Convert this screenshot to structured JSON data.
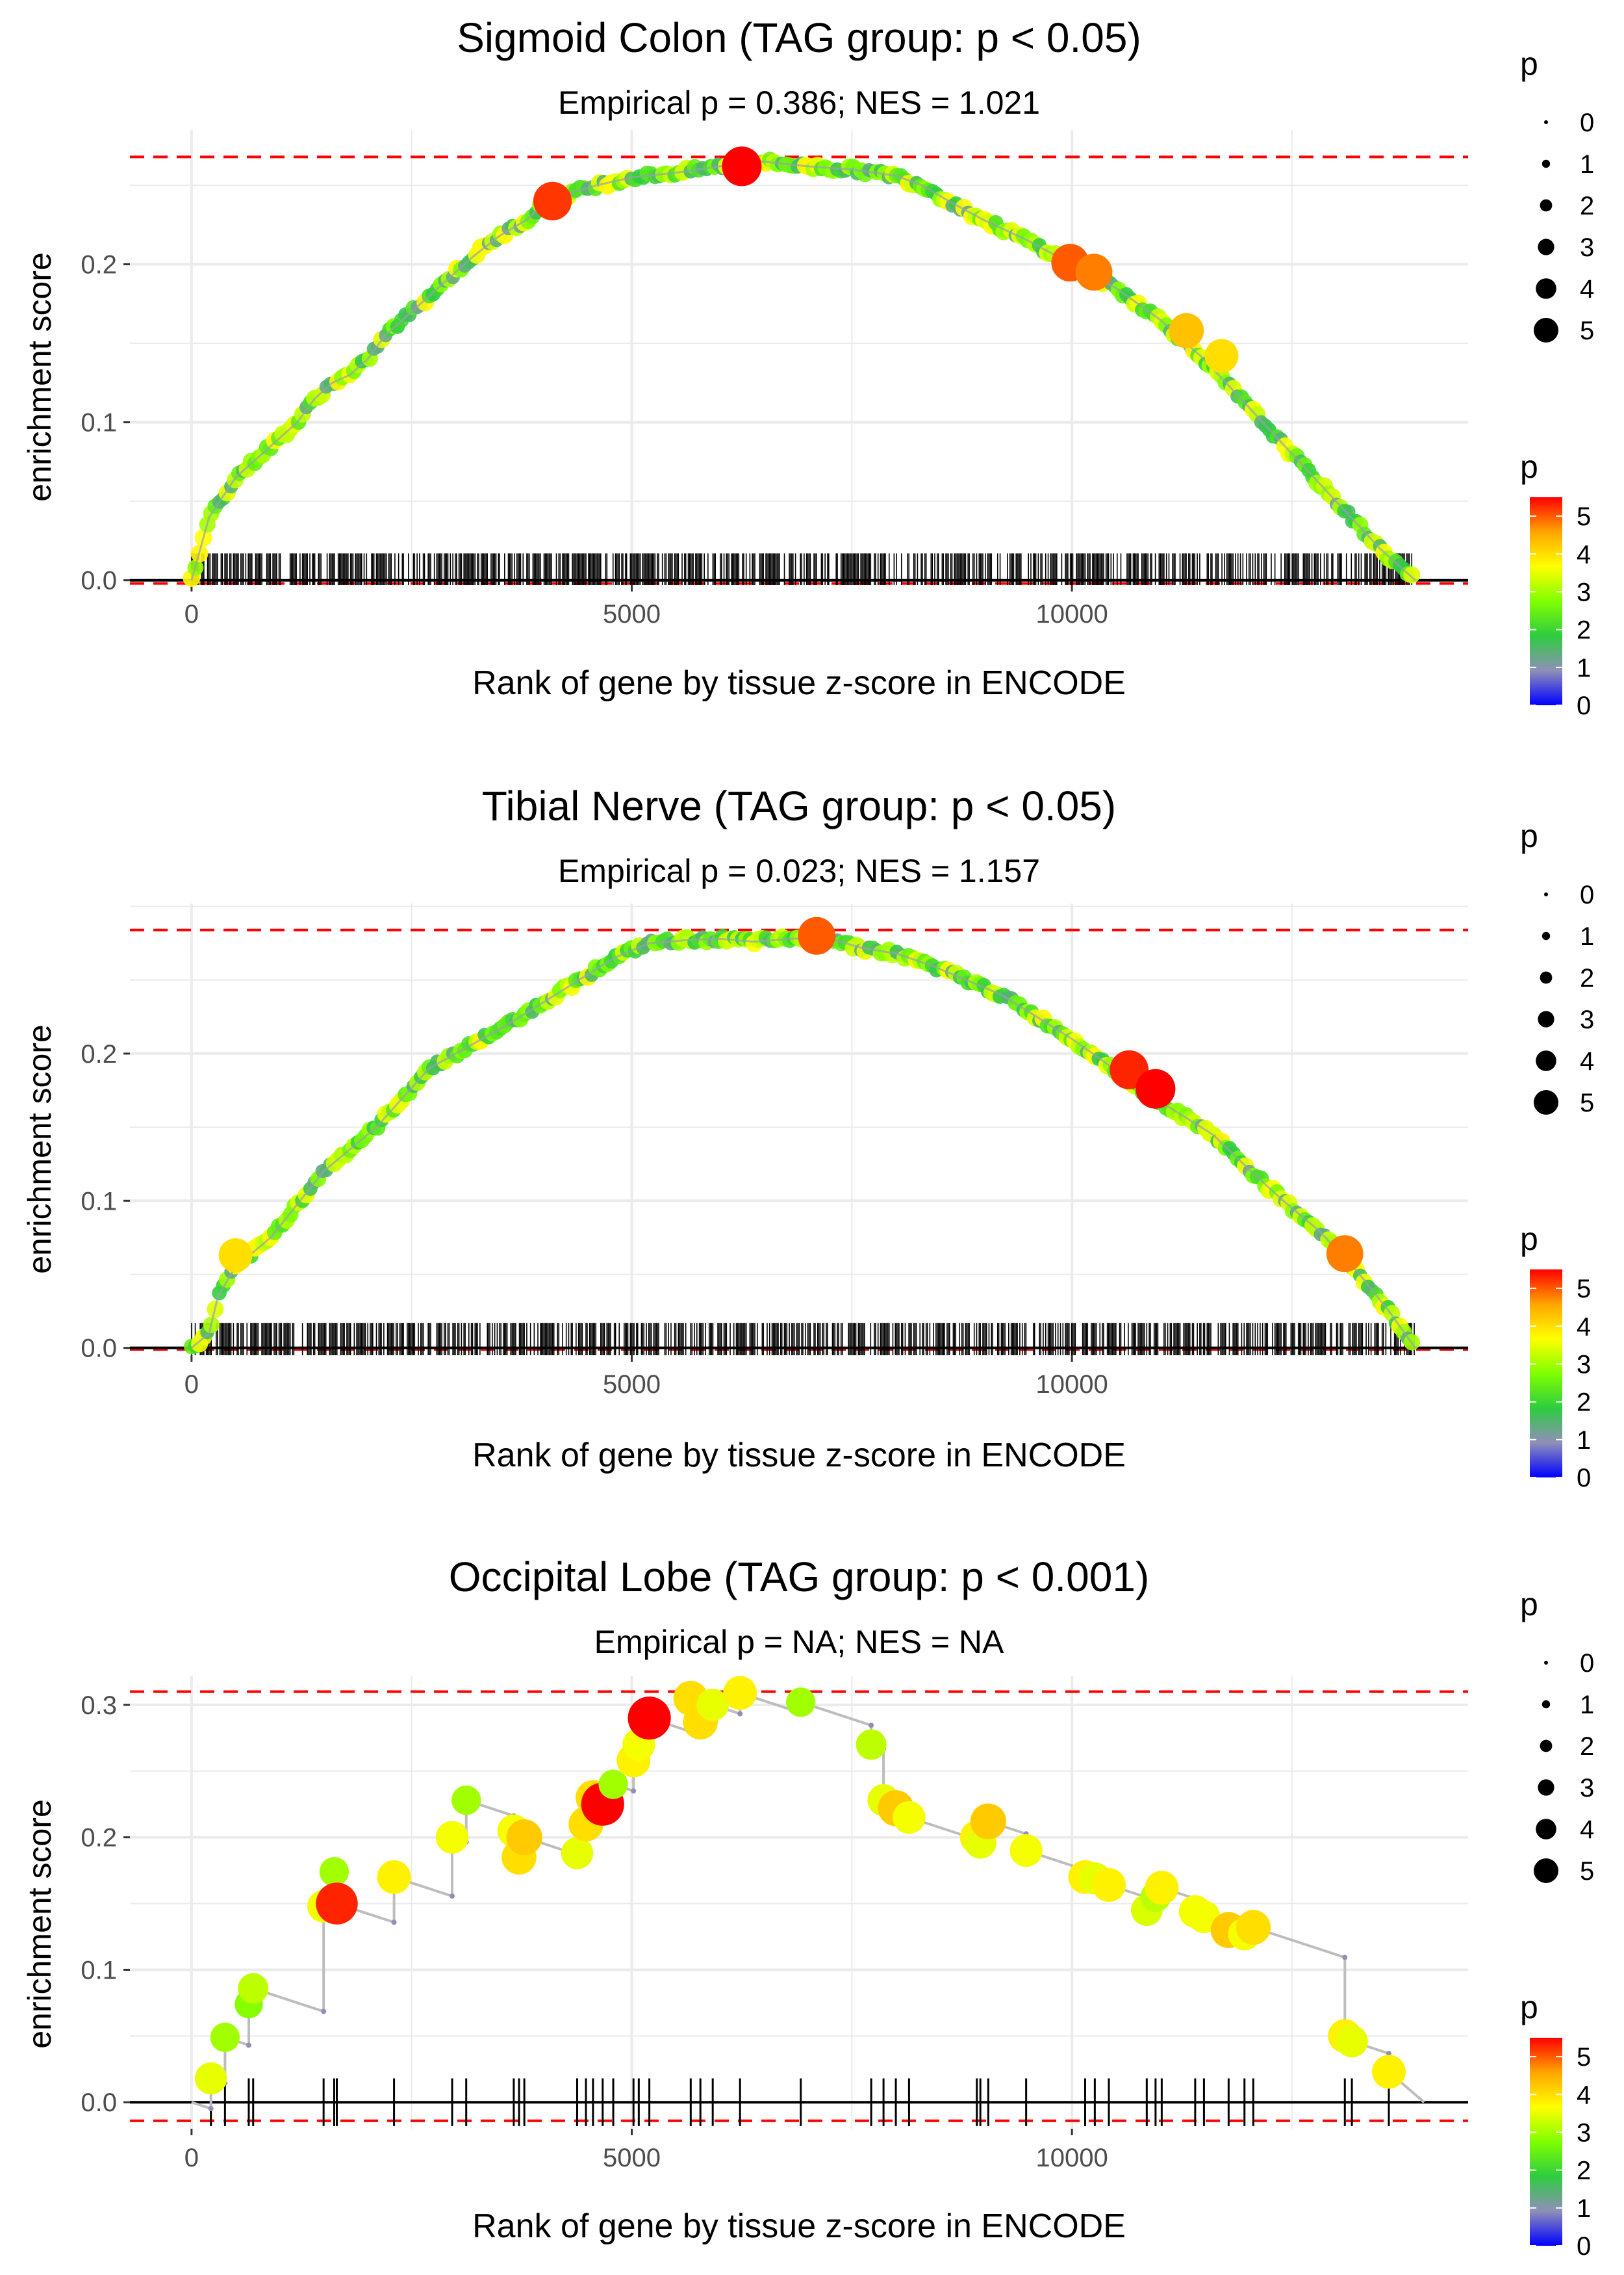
{
  "colors": {
    "background": "#ffffff",
    "grid": "#ebebeb",
    "threshold_line": "#ff0000",
    "zero_line": "#000000",
    "path_line": "#bdbdbd",
    "rug": "#000000",
    "axis_text": "#4d4d4d",
    "title_text": "#000000",
    "colorbar_stops": [
      "#0000ff",
      "#8f8fb8",
      "#2ecc40",
      "#7fff00",
      "#ffff00",
      "#ffa500",
      "#ff0000"
    ]
  },
  "chart_data": [
    {
      "type": "line",
      "title": "Sigmoid Colon (TAG group: p < 0.05)",
      "subtitle": "Empirical p = 0.386; NES = 1.021",
      "xlabel": "Rank of gene by tissue z-score in ENCODE",
      "ylabel": "enrichment score",
      "xlim": [
        -700,
        14500
      ],
      "ylim": [
        -0.003,
        0.285
      ],
      "xticks": [
        0,
        5000,
        10000
      ],
      "xtick_labels": [
        "0",
        "5000",
        "10000"
      ],
      "yticks": [
        0.0,
        0.1,
        0.2
      ],
      "ytick_labels": [
        "0.0",
        "0.1",
        "0.2"
      ],
      "thresholds": [
        0.268,
        -0.002
      ],
      "legend_size": {
        "title": "p",
        "labels": [
          "0",
          "1",
          "2",
          "3",
          "4",
          "5"
        ]
      },
      "legend_color": {
        "title": "p",
        "labels": [
          "0",
          "1",
          "2",
          "3",
          "4",
          "5"
        ],
        "range": [
          0,
          5.5
        ]
      },
      "dense": true,
      "curve": {
        "x": [
          0,
          200,
          500,
          800,
          1000,
          1200,
          1400,
          1600,
          1800,
          2000,
          2200,
          2500,
          2800,
          3000,
          3200,
          3500,
          3800,
          4000,
          4300,
          4600,
          5000,
          5500,
          6000,
          6500,
          7000,
          7500,
          8000,
          8300,
          8600,
          9000,
          9500,
          10000,
          10500,
          11000,
          11500,
          12000,
          12500,
          13000,
          13500,
          13900
        ],
        "y": [
          0.0,
          0.04,
          0.065,
          0.08,
          0.09,
          0.1,
          0.115,
          0.125,
          0.13,
          0.14,
          0.155,
          0.17,
          0.185,
          0.195,
          0.205,
          0.218,
          0.228,
          0.238,
          0.245,
          0.25,
          0.255,
          0.258,
          0.262,
          0.265,
          0.262,
          0.26,
          0.256,
          0.25,
          0.24,
          0.228,
          0.215,
          0.2,
          0.185,
          0.165,
          0.14,
          0.11,
          0.08,
          0.05,
          0.02,
          0.0
        ]
      },
      "highlight_points": [
        {
          "x": 4100,
          "y": 0.24,
          "p": 5.2
        },
        {
          "x": 6250,
          "y": 0.262,
          "p": 5.5
        },
        {
          "x": 9980,
          "y": 0.201,
          "p": 5.0
        },
        {
          "x": 10250,
          "y": 0.195,
          "p": 4.8
        },
        {
          "x": 11300,
          "y": 0.158,
          "p": 4.3
        },
        {
          "x": 11700,
          "y": 0.142,
          "p": 4.0
        }
      ]
    },
    {
      "type": "line",
      "title": "Tibial Nerve (TAG group: p < 0.05)",
      "subtitle": "Empirical p = 0.023; NES = 1.157",
      "xlabel": "Rank of gene by tissue z-score in ENCODE",
      "ylabel": "enrichment score",
      "xlim": [
        -700,
        14500
      ],
      "ylim": [
        -0.005,
        0.302
      ],
      "xticks": [
        0,
        5000,
        10000
      ],
      "xtick_labels": [
        "0",
        "5000",
        "10000"
      ],
      "yticks": [
        0.0,
        0.1,
        0.2
      ],
      "ytick_labels": [
        "0.0",
        "0.1",
        "0.2"
      ],
      "thresholds": [
        0.284,
        -0.001
      ],
      "legend_size": {
        "title": "p",
        "labels": [
          "0",
          "1",
          "2",
          "3",
          "4",
          "5"
        ]
      },
      "legend_color": {
        "title": "p",
        "labels": [
          "0",
          "1",
          "2",
          "3",
          "4",
          "5"
        ],
        "range": [
          0,
          5.5
        ]
      },
      "dense": true,
      "curve": {
        "x": [
          0,
          200,
          300,
          500,
          700,
          900,
          1100,
          1300,
          1500,
          1700,
          1900,
          2100,
          2400,
          2700,
          3000,
          3300,
          3600,
          4000,
          4400,
          4800,
          5200,
          5600,
          6000,
          6400,
          6800,
          7200,
          7600,
          8000,
          8400,
          8800,
          9200,
          9600,
          10000,
          10400,
          10800,
          11200,
          11600,
          12000,
          12400,
          12800,
          13200,
          13600,
          13900
        ],
        "y": [
          0.0,
          0.01,
          0.035,
          0.055,
          0.065,
          0.075,
          0.09,
          0.105,
          0.12,
          0.13,
          0.14,
          0.15,
          0.17,
          0.19,
          0.2,
          0.21,
          0.22,
          0.235,
          0.25,
          0.265,
          0.275,
          0.277,
          0.278,
          0.276,
          0.278,
          0.279,
          0.272,
          0.268,
          0.26,
          0.25,
          0.24,
          0.225,
          0.21,
          0.193,
          0.175,
          0.16,
          0.145,
          0.122,
          0.1,
          0.08,
          0.055,
          0.025,
          0.0
        ]
      },
      "highlight_points": [
        {
          "x": 7100,
          "y": 0.28,
          "p": 5.0
        },
        {
          "x": 10650,
          "y": 0.189,
          "p": 5.3
        },
        {
          "x": 10950,
          "y": 0.176,
          "p": 5.5
        },
        {
          "x": 13100,
          "y": 0.064,
          "p": 4.8
        },
        {
          "x": 500,
          "y": 0.063,
          "p": 4.0
        }
      ]
    },
    {
      "type": "line",
      "title": "Occipital Lobe (TAG group: p < 0.001)",
      "subtitle": "Empirical p = NA; NES = NA",
      "xlabel": "Rank of gene by tissue z-score in ENCODE",
      "ylabel": "enrichment score",
      "xlim": [
        -700,
        14500
      ],
      "ylim": [
        -0.02,
        0.322
      ],
      "xticks": [
        0,
        5000,
        10000
      ],
      "xtick_labels": [
        "0",
        "5000",
        "10000"
      ],
      "yticks": [
        0.0,
        0.1,
        0.2,
        0.3
      ],
      "ytick_labels": [
        "0.0",
        "0.1",
        "0.2",
        "0.3"
      ],
      "thresholds": [
        0.31,
        -0.014
      ],
      "legend_size": {
        "title": "p",
        "labels": [
          "0",
          "1",
          "2",
          "3",
          "4",
          "5"
        ]
      },
      "legend_color": {
        "title": "p",
        "labels": [
          "0",
          "1",
          "2",
          "3",
          "4",
          "5"
        ],
        "range": [
          0,
          5.5
        ]
      },
      "dense": false,
      "hits": {
        "x": [
          220,
          380,
          650,
          700,
          1500,
          1620,
          1650,
          2300,
          2960,
          3120,
          3660,
          3720,
          3780,
          4380,
          4480,
          4560,
          4670,
          4790,
          5020,
          5080,
          5200,
          5670,
          5780,
          5920,
          6230,
          6920,
          7720,
          7860,
          8000,
          8150,
          8920,
          8960,
          9050,
          9480,
          10150,
          10260,
          10420,
          10850,
          10950,
          11020,
          11400,
          11500,
          11780,
          11960,
          12060,
          13100,
          13180,
          13600
        ],
        "y": [
          0.018,
          0.049,
          0.074,
          0.086,
          0.148,
          0.174,
          0.15,
          0.17,
          0.2,
          0.228,
          0.205,
          0.185,
          0.2,
          0.188,
          0.21,
          0.23,
          0.225,
          0.24,
          0.258,
          0.27,
          0.29,
          0.305,
          0.287,
          0.3,
          0.309,
          0.302,
          0.27,
          0.228,
          0.222,
          0.215,
          0.2,
          0.196,
          0.212,
          0.19,
          0.17,
          0.169,
          0.164,
          0.145,
          0.155,
          0.162,
          0.144,
          0.14,
          0.13,
          0.127,
          0.132,
          0.05,
          0.046,
          0.023
        ],
        "p": [
          3.5,
          3.0,
          2.8,
          3.2,
          3.6,
          3.0,
          5.3,
          3.8,
          3.6,
          3.0,
          3.6,
          4.0,
          4.2,
          3.5,
          4.0,
          4.0,
          5.5,
          3.0,
          3.8,
          3.6,
          5.5,
          4.0,
          4.0,
          3.5,
          3.8,
          3.0,
          3.2,
          3.5,
          4.2,
          3.6,
          3.8,
          3.5,
          4.2,
          3.6,
          3.8,
          3.5,
          3.8,
          3.4,
          3.2,
          3.8,
          3.6,
          3.6,
          4.2,
          3.6,
          4.0,
          3.8,
          3.5,
          3.8
        ]
      }
    }
  ]
}
